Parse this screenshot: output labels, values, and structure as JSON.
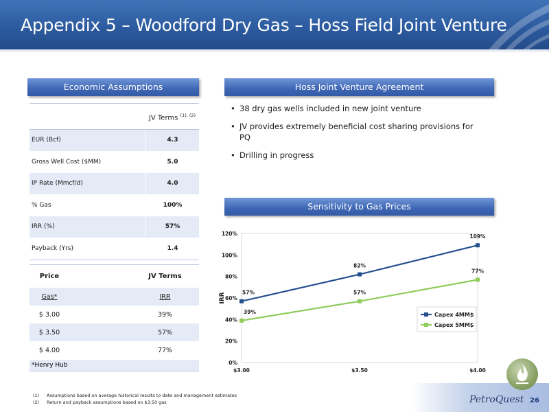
{
  "title": "Appendix 5 – Woodford Dry Gas – Hoss Field Joint Venture",
  "colors": {
    "title_band": "#2c5a9e",
    "header_bar": "#3e66b4",
    "row_shade": "#e4ebf6",
    "series1": "#264f8f",
    "series2": "#8fcc5b"
  },
  "sections": {
    "economic": "Economic Assumptions",
    "hoss": "Hoss Joint Venture Agreement",
    "sensitivity": "Sensitivity to Gas Prices"
  },
  "jv_table": {
    "column_header": "JV Terms",
    "column_header_sup": "(1), (2)",
    "rows": [
      {
        "label": "EUR (Bcf)",
        "value": "4.3"
      },
      {
        "label": "Gross Well Cost ($MM)",
        "value": "5.0"
      },
      {
        "label": "IP Rate (Mmcf/d)",
        "value": "4.0"
      },
      {
        "label": "% Gas",
        "value": "100%"
      },
      {
        "label": "IRR (%)",
        "value": "57%"
      },
      {
        "label": "Payback (Yrs)",
        "value": "1.4"
      }
    ]
  },
  "price_table": {
    "header": {
      "c1": "Price",
      "c2": "JV Terms"
    },
    "subheader": {
      "c1": "Gas*",
      "c2": "IRR"
    },
    "rows": [
      {
        "price": "$ 3.00",
        "irr": "39%"
      },
      {
        "price": "$ 3.50",
        "irr": "57%"
      },
      {
        "price": "$ 4.00",
        "irr": "77%"
      }
    ],
    "footnote": "*Henry Hub"
  },
  "bullets": [
    "38 dry gas wells included in new joint venture",
    "JV provides extremely beneficial cost sharing provisions for PQ",
    "Drilling in progress"
  ],
  "chart_data": {
    "type": "line",
    "categories": [
      "$3.00",
      "$3.50",
      "$4.00"
    ],
    "series": [
      {
        "name": "Capex 4MM$",
        "values": [
          57,
          82,
          109
        ],
        "labels": [
          "57%",
          "82%",
          "109%"
        ],
        "color": "#264f8f"
      },
      {
        "name": "Capex 5MM$",
        "values": [
          39,
          57,
          77
        ],
        "labels": [
          "39%",
          "57%",
          "77%"
        ],
        "color": "#8fcc5b"
      }
    ],
    "ylabel": "IRR",
    "ylim": [
      0,
      120
    ],
    "yticks": [
      0,
      20,
      40,
      60,
      80,
      100,
      120
    ],
    "ytick_labels": [
      "0%",
      "20%",
      "40%",
      "60%",
      "80%",
      "100%",
      "120%"
    ],
    "legend": "right"
  },
  "footnotes": [
    {
      "num": "(1)",
      "text": "Assumptions based on average historical results to date and management estimates"
    },
    {
      "num": "(2)",
      "text": "Return and payback assumptions based on $3.50 gas"
    }
  ],
  "brand": "PetroQuest",
  "page_number": "26"
}
